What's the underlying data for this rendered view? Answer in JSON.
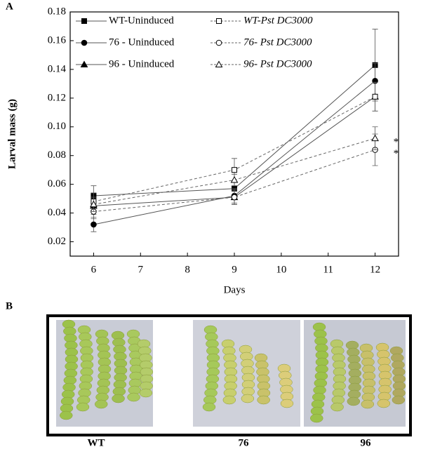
{
  "panel_a_label": "A",
  "panel_b_label": "B",
  "chart_data": {
    "type": "line",
    "y_label": "Larval mass (g)",
    "x_label": "Days",
    "x": [
      6,
      9,
      12
    ],
    "xlim": [
      5.5,
      12.5
    ],
    "xticks": [
      6,
      7,
      8,
      9,
      10,
      11,
      12
    ],
    "ylim": [
      0.01,
      0.18
    ],
    "yticks": [
      0.02,
      0.04,
      0.06,
      0.08,
      {
        "value": 0.1,
        "label": "0.10"
      },
      0.12,
      0.14,
      0.16,
      0.18
    ],
    "series": [
      {
        "name": "WT-Uninduced",
        "color": "#000000",
        "marker": "square",
        "filled": true,
        "dashed": false,
        "values": [
          0.052,
          0.057,
          0.143
        ],
        "errors": [
          0.007,
          0.005,
          0.025
        ]
      },
      {
        "name": "76 - Uninduced",
        "color": "#000000",
        "marker": "circle",
        "filled": true,
        "dashed": false,
        "values": [
          0.032,
          0.052,
          0.132
        ],
        "errors": [
          0.005,
          0.005,
          0.012
        ]
      },
      {
        "name": "96 - Uninduced",
        "color": "#000000",
        "marker": "triangle",
        "filled": true,
        "dashed": false,
        "values": [
          0.045,
          0.051,
          0.121
        ],
        "errors": [
          0.006,
          0.005,
          0.01
        ]
      },
      {
        "name": "WT-Pst DC3000",
        "color": "#000000",
        "marker": "square",
        "filled": false,
        "dashed": true,
        "values": [
          0.048,
          0.07,
          0.121
        ],
        "errors": [
          0.006,
          0.008,
          0.01
        ]
      },
      {
        "name": "76- Pst DC3000",
        "color": "#000000",
        "marker": "circle",
        "filled": false,
        "dashed": true,
        "values": [
          0.041,
          0.051,
          0.084
        ],
        "errors": [
          0.005,
          0.005,
          0.011
        ]
      },
      {
        "name": "96- Pst DC3000",
        "color": "#000000",
        "marker": "triangle",
        "filled": false,
        "dashed": true,
        "values": [
          0.046,
          0.063,
          0.092
        ],
        "errors": [
          0.005,
          0.004,
          0.008
        ]
      }
    ],
    "annotations": [
      "*",
      "*"
    ]
  },
  "photo_labels": [
    "WT",
    "76",
    "96"
  ]
}
